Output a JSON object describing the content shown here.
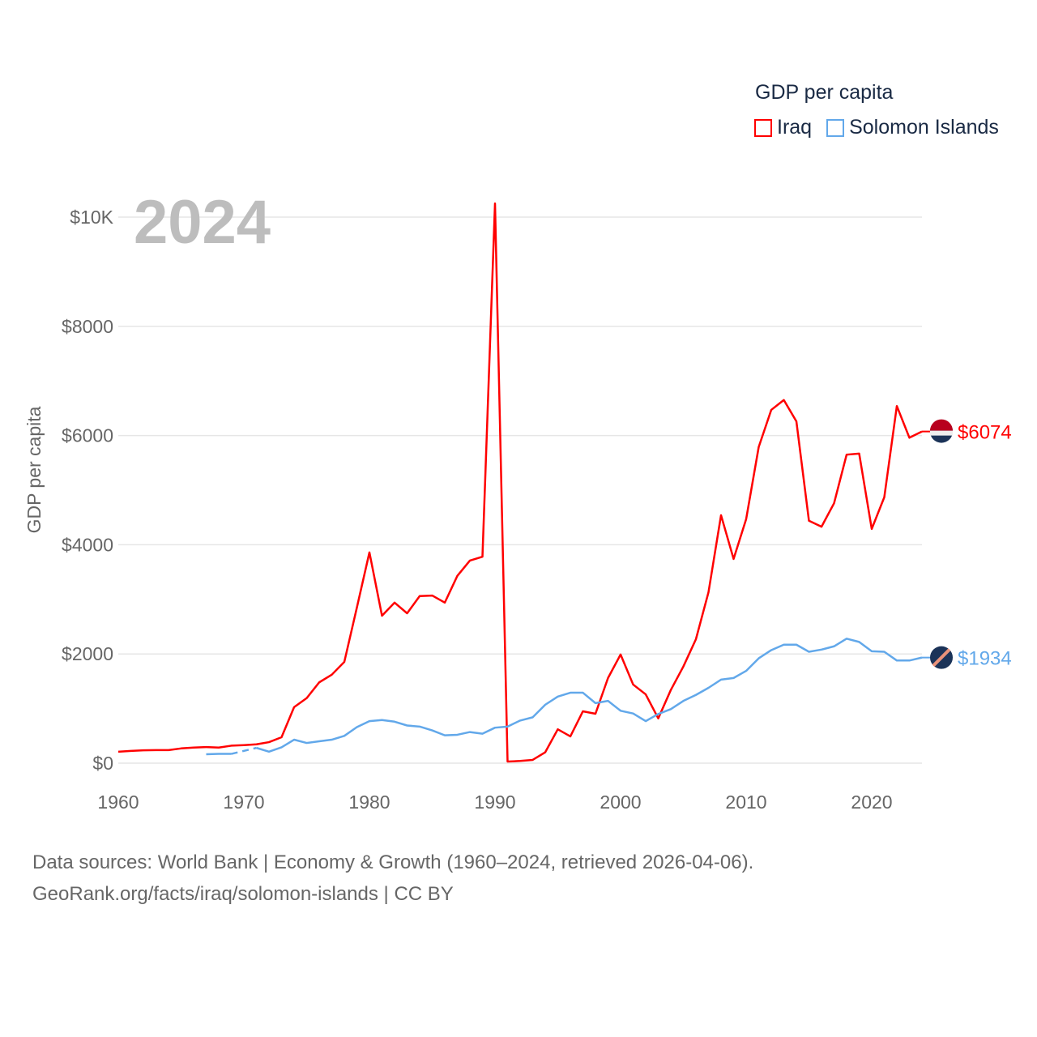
{
  "chart_data": {
    "type": "line",
    "title": "",
    "year_label": "2024",
    "ylabel": "GDP per capita",
    "xlabel": "",
    "xlim": [
      1960,
      2024
    ],
    "ylim": [
      0,
      10000
    ],
    "grid": true,
    "x_ticks": [
      1960,
      1970,
      1980,
      1990,
      2000,
      2010,
      2020
    ],
    "x_tick_labels": [
      "1960",
      "1970",
      "1980",
      "1990",
      "2000",
      "2010",
      "2020"
    ],
    "y_ticks": [
      0,
      2000,
      4000,
      6000,
      8000,
      10000
    ],
    "y_tick_labels": [
      "$0",
      "$2000",
      "$4000",
      "$6000",
      "$8000",
      "$10K"
    ],
    "legend": {
      "title": "GDP per capita",
      "placement": "top-right"
    },
    "years": [
      1960,
      1961,
      1962,
      1963,
      1964,
      1965,
      1966,
      1967,
      1968,
      1969,
      1970,
      1971,
      1972,
      1973,
      1974,
      1975,
      1976,
      1977,
      1978,
      1979,
      1980,
      1981,
      1982,
      1983,
      1984,
      1985,
      1986,
      1987,
      1988,
      1989,
      1990,
      1991,
      1992,
      1993,
      1994,
      1995,
      1996,
      1997,
      1998,
      1999,
      2000,
      2001,
      2002,
      2003,
      2004,
      2005,
      2006,
      2007,
      2008,
      2009,
      2010,
      2011,
      2012,
      2013,
      2014,
      2015,
      2016,
      2017,
      2018,
      2019,
      2020,
      2021,
      2022,
      2023,
      2024
    ],
    "series": [
      {
        "name": "Iraq",
        "color": "#ff0000",
        "end_label": "$6074",
        "values": [
          210,
          225,
          235,
          240,
          240,
          270,
          285,
          295,
          285,
          320,
          330,
          345,
          385,
          475,
          1025,
          1190,
          1480,
          1620,
          1855,
          2850,
          3860,
          2700,
          2940,
          2745,
          3060,
          3070,
          2940,
          3430,
          3710,
          3780,
          10250,
          30,
          40,
          60,
          200,
          620,
          490,
          950,
          905,
          1560,
          1990,
          1440,
          1260,
          820,
          1340,
          1770,
          2270,
          3130,
          4540,
          3740,
          4470,
          5790,
          6470,
          6650,
          6260,
          4440,
          4330,
          4760,
          5650,
          5670,
          4290,
          4870,
          6540,
          5960,
          6074
        ]
      },
      {
        "name": "Solomon Islands",
        "color": "#62a8ea",
        "end_label": "$1934",
        "values": [
          null,
          null,
          null,
          null,
          null,
          null,
          null,
          163,
          170,
          170,
          null,
          280,
          210,
          290,
          430,
          370,
          400,
          430,
          500,
          660,
          770,
          790,
          760,
          690,
          670,
          600,
          510,
          520,
          570,
          540,
          650,
          670,
          780,
          840,
          1070,
          1220,
          1290,
          1290,
          1100,
          1140,
          960,
          910,
          770,
          900,
          990,
          1140,
          1250,
          1380,
          1530,
          1560,
          1690,
          1920,
          2070,
          2170,
          2170,
          2040,
          2080,
          2140,
          2280,
          2220,
          2050,
          2040,
          1880,
          1880,
          1934
        ]
      }
    ]
  },
  "footer": {
    "line1": "Data sources: World Bank | Economy & Growth (1960–2024, retrieved 2026-04-06).",
    "line2": "GeoRank.org/facts/iraq/solomon-islands | CC BY"
  }
}
